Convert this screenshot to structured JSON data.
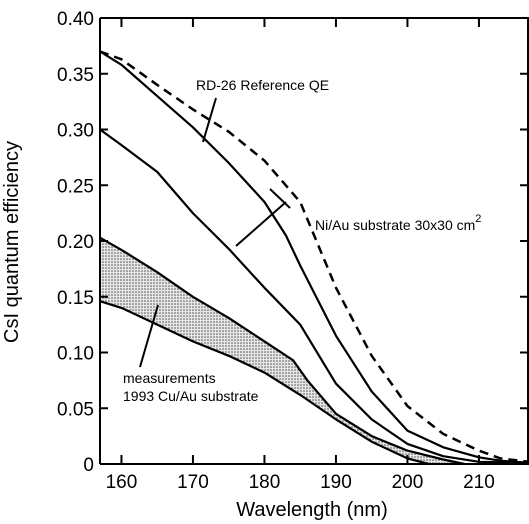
{
  "chart_data": {
    "type": "line",
    "xlabel": "Wavelength  (nm)",
    "ylabel": "CsI quantum efficiency",
    "xlim": [
      157,
      217
    ],
    "ylim": [
      0,
      0.4
    ],
    "x_ticks": [
      {
        "value": 160,
        "label": "160"
      },
      {
        "value": 170,
        "label": "170"
      },
      {
        "value": 180,
        "label": "180"
      },
      {
        "value": 190,
        "label": "190"
      },
      {
        "value": 200,
        "label": "200"
      },
      {
        "value": 210,
        "label": "210"
      }
    ],
    "y_ticks": [
      {
        "value": 0,
        "label": "0"
      },
      {
        "value": 0.05,
        "label": "0.05"
      },
      {
        "value": 0.1,
        "label": "0.10"
      },
      {
        "value": 0.15,
        "label": "0.15"
      },
      {
        "value": 0.2,
        "label": "0.20"
      },
      {
        "value": 0.25,
        "label": "0.25"
      },
      {
        "value": 0.3,
        "label": "0.30"
      },
      {
        "value": 0.35,
        "label": "0.35"
      },
      {
        "value": 0.4,
        "label": "0.40"
      }
    ],
    "grid": false,
    "series": [
      {
        "style": "dashed",
        "x": [
          157,
          160,
          165,
          170,
          175,
          180,
          185,
          190,
          195,
          200,
          205,
          210,
          213,
          217
        ],
        "y": [
          0.37,
          0.363,
          0.34,
          0.318,
          0.298,
          0.272,
          0.235,
          0.158,
          0.097,
          0.052,
          0.027,
          0.012,
          0.005,
          0.002
        ]
      },
      {
        "style": "solid",
        "x": [
          157,
          160,
          165,
          170,
          175,
          180,
          183,
          185,
          190,
          195,
          200,
          205,
          210,
          213,
          217
        ],
        "y": [
          0.37,
          0.358,
          0.33,
          0.302,
          0.27,
          0.235,
          0.205,
          0.178,
          0.115,
          0.065,
          0.03,
          0.015,
          0.006,
          0.003,
          0.001
        ]
      },
      {
        "style": "solid",
        "x": [
          157,
          160,
          165,
          170,
          175,
          180,
          185,
          190,
          195,
          200,
          205,
          210,
          217
        ],
        "y": [
          0.3,
          0.286,
          0.262,
          0.225,
          0.193,
          0.158,
          0.125,
          0.072,
          0.04,
          0.018,
          0.007,
          0.002,
          0.001
        ]
      },
      {
        "style": "band-upper",
        "x": [
          157,
          160,
          165,
          170,
          175,
          180,
          184,
          186,
          190,
          195,
          200,
          205,
          208
        ],
        "y": [
          0.203,
          0.192,
          0.172,
          0.15,
          0.131,
          0.11,
          0.093,
          0.075,
          0.045,
          0.025,
          0.012,
          0.004,
          0.0
        ]
      },
      {
        "style": "band-lower",
        "x": [
          157,
          160,
          165,
          170,
          175,
          180,
          185,
          190,
          195,
          200,
          203
        ],
        "y": [
          0.146,
          0.14,
          0.125,
          0.11,
          0.097,
          0.082,
          0.062,
          0.04,
          0.02,
          0.005,
          0.0
        ]
      }
    ],
    "annotations": {
      "rd26": "RD-26 Reference QE",
      "niau": "Ni/Au substrate 30x30 cm",
      "niau_sup": "2",
      "meas1": "measurements",
      "meas2": "1993 Cu/Au substrate"
    }
  }
}
